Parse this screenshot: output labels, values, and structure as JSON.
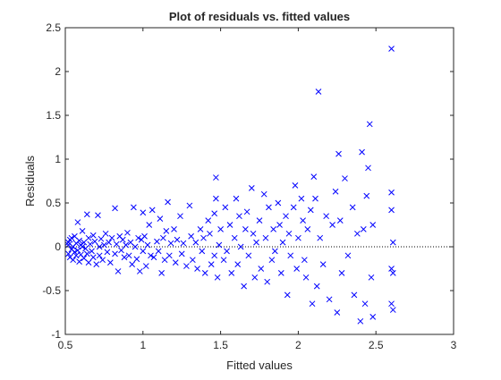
{
  "chart_data": {
    "type": "scatter",
    "title": "Plot of residuals vs. fitted values",
    "xlabel": "Fitted values",
    "ylabel": "Residuals",
    "xlim": [
      0.5,
      3
    ],
    "ylim": [
      -1,
      2.5
    ],
    "xticks": [
      0.5,
      1,
      1.5,
      2,
      2.5,
      3
    ],
    "yticks": [
      -1,
      -0.5,
      0,
      0.5,
      1,
      1.5,
      2,
      2.5
    ],
    "xtick_labels": [
      "0.5",
      "1",
      "1.5",
      "2",
      "2.5",
      "3"
    ],
    "ytick_labels": [
      "-1",
      "-0.5",
      "0",
      "0.5",
      "1",
      "1.5",
      "2",
      "2.5"
    ],
    "grid": false,
    "marker": "x",
    "marker_color": "#0000ff",
    "reference_line": {
      "y": 0,
      "style": "dotted",
      "color": "#000000"
    },
    "series": [
      {
        "points": [
          [
            0.52,
            0.05
          ],
          [
            0.52,
            -0.08
          ],
          [
            0.52,
            0.02
          ],
          [
            0.53,
            -0.12
          ],
          [
            0.53,
            0.08
          ],
          [
            0.54,
            -0.03
          ],
          [
            0.54,
            0.1
          ],
          [
            0.55,
            -0.15
          ],
          [
            0.55,
            0.0
          ],
          [
            0.56,
            0.12
          ],
          [
            0.56,
            -0.06
          ],
          [
            0.57,
            0.04
          ],
          [
            0.57,
            -0.1
          ],
          [
            0.58,
            0.28
          ],
          [
            0.58,
            -0.04
          ],
          [
            0.59,
            0.07
          ],
          [
            0.59,
            -0.17
          ],
          [
            0.6,
            0.02
          ],
          [
            0.6,
            -0.09
          ],
          [
            0.61,
            0.18
          ],
          [
            0.61,
            0.0
          ],
          [
            0.62,
            -0.13
          ],
          [
            0.62,
            0.05
          ],
          [
            0.63,
            -0.02
          ],
          [
            0.64,
            0.37
          ],
          [
            0.64,
            -0.08
          ],
          [
            0.65,
            0.1
          ],
          [
            0.65,
            -0.18
          ],
          [
            0.66,
            0.03
          ],
          [
            0.67,
            -0.05
          ],
          [
            0.68,
            0.13
          ],
          [
            0.68,
            -0.12
          ],
          [
            0.69,
            0.06
          ],
          [
            0.7,
            -0.2
          ],
          [
            0.71,
            0.36
          ],
          [
            0.72,
            0.0
          ],
          [
            0.72,
            -0.1
          ],
          [
            0.73,
            0.09
          ],
          [
            0.74,
            -0.15
          ],
          [
            0.75,
            0.02
          ],
          [
            0.76,
            0.15
          ],
          [
            0.77,
            -0.06
          ],
          [
            0.78,
            0.05
          ],
          [
            0.79,
            -0.18
          ],
          [
            0.8,
            0.1
          ],
          [
            0.82,
            0.44
          ],
          [
            0.82,
            -0.08
          ],
          [
            0.83,
            0.03
          ],
          [
            0.84,
            -0.28
          ],
          [
            0.85,
            0.12
          ],
          [
            0.86,
            -0.04
          ],
          [
            0.87,
            0.08
          ],
          [
            0.88,
            -0.12
          ],
          [
            0.89,
            0.02
          ],
          [
            0.9,
            0.16
          ],
          [
            0.91,
            -0.1
          ],
          [
            0.92,
            0.05
          ],
          [
            0.93,
            -0.2
          ],
          [
            0.94,
            0.45
          ],
          [
            0.95,
            0.0
          ],
          [
            0.96,
            -0.14
          ],
          [
            0.97,
            0.1
          ],
          [
            0.98,
            -0.28
          ],
          [
            0.99,
            0.08
          ],
          [
            1.0,
            0.39
          ],
          [
            1.0,
            -0.05
          ],
          [
            1.01,
            0.12
          ],
          [
            1.02,
            -0.22
          ],
          [
            1.03,
            0.02
          ],
          [
            1.04,
            0.25
          ],
          [
            1.05,
            -0.1
          ],
          [
            1.06,
            0.42
          ],
          [
            1.07,
            -0.12
          ],
          [
            1.09,
            0.06
          ],
          [
            1.1,
            -0.05
          ],
          [
            1.11,
            0.32
          ],
          [
            1.12,
            -0.3
          ],
          [
            1.13,
            0.1
          ],
          [
            1.14,
            -0.15
          ],
          [
            1.15,
            0.18
          ],
          [
            1.16,
            0.51
          ],
          [
            1.17,
            -0.1
          ],
          [
            1.18,
            0.04
          ],
          [
            1.2,
            0.2
          ],
          [
            1.21,
            -0.18
          ],
          [
            1.22,
            0.08
          ],
          [
            1.24,
            0.35
          ],
          [
            1.25,
            -0.08
          ],
          [
            1.26,
            0.04
          ],
          [
            1.28,
            -0.22
          ],
          [
            1.3,
            0.47
          ],
          [
            1.31,
            0.12
          ],
          [
            1.32,
            -0.15
          ],
          [
            1.34,
            0.05
          ],
          [
            1.35,
            -0.25
          ],
          [
            1.37,
            0.2
          ],
          [
            1.38,
            -0.05
          ],
          [
            1.39,
            0.1
          ],
          [
            1.4,
            -0.3
          ],
          [
            1.42,
            0.3
          ],
          [
            1.43,
            0.15
          ],
          [
            1.44,
            -0.2
          ],
          [
            1.46,
            0.38
          ],
          [
            1.46,
            -0.1
          ],
          [
            1.47,
            0.55
          ],
          [
            1.47,
            0.79
          ],
          [
            1.48,
            -0.35
          ],
          [
            1.49,
            0.02
          ],
          [
            1.5,
            0.2
          ],
          [
            1.52,
            -0.15
          ],
          [
            1.53,
            0.45
          ],
          [
            1.54,
            -0.05
          ],
          [
            1.56,
            0.25
          ],
          [
            1.57,
            -0.3
          ],
          [
            1.59,
            0.1
          ],
          [
            1.6,
            0.55
          ],
          [
            1.61,
            -0.2
          ],
          [
            1.62,
            0.35
          ],
          [
            1.63,
            0.0
          ],
          [
            1.65,
            -0.45
          ],
          [
            1.66,
            0.2
          ],
          [
            1.67,
            0.4
          ],
          [
            1.68,
            -0.1
          ],
          [
            1.7,
            0.67
          ],
          [
            1.71,
            0.15
          ],
          [
            1.72,
            -0.35
          ],
          [
            1.73,
            0.05
          ],
          [
            1.75,
            0.3
          ],
          [
            1.76,
            -0.25
          ],
          [
            1.78,
            0.6
          ],
          [
            1.79,
            0.1
          ],
          [
            1.8,
            -0.4
          ],
          [
            1.81,
            0.45
          ],
          [
            1.83,
            -0.15
          ],
          [
            1.84,
            0.2
          ],
          [
            1.85,
            -0.05
          ],
          [
            1.87,
            0.5
          ],
          [
            1.88,
            0.25
          ],
          [
            1.89,
            -0.3
          ],
          [
            1.9,
            0.05
          ],
          [
            1.92,
            0.35
          ],
          [
            1.93,
            -0.55
          ],
          [
            1.94,
            0.15
          ],
          [
            1.95,
            -0.1
          ],
          [
            1.97,
            0.45
          ],
          [
            1.98,
            0.7
          ],
          [
            1.99,
            -0.25
          ],
          [
            2.0,
            0.1
          ],
          [
            2.02,
            0.55
          ],
          [
            2.03,
            0.3
          ],
          [
            2.04,
            -0.15
          ],
          [
            2.05,
            -0.35
          ],
          [
            2.06,
            0.2
          ],
          [
            2.08,
            0.42
          ],
          [
            2.09,
            -0.65
          ],
          [
            2.1,
            0.8
          ],
          [
            2.11,
            0.55
          ],
          [
            2.12,
            -0.45
          ],
          [
            2.13,
            1.77
          ],
          [
            2.14,
            0.1
          ],
          [
            2.16,
            -0.2
          ],
          [
            2.18,
            0.35
          ],
          [
            2.2,
            -0.6
          ],
          [
            2.22,
            0.25
          ],
          [
            2.24,
            0.63
          ],
          [
            2.25,
            -0.75
          ],
          [
            2.26,
            1.06
          ],
          [
            2.27,
            0.3
          ],
          [
            2.28,
            -0.3
          ],
          [
            2.3,
            0.78
          ],
          [
            2.32,
            -0.1
          ],
          [
            2.35,
            0.45
          ],
          [
            2.36,
            -0.55
          ],
          [
            2.38,
            0.15
          ],
          [
            2.4,
            -0.85
          ],
          [
            2.41,
            1.08
          ],
          [
            2.42,
            0.2
          ],
          [
            2.43,
            -0.65
          ],
          [
            2.44,
            0.58
          ],
          [
            2.45,
            0.9
          ],
          [
            2.46,
            1.4
          ],
          [
            2.47,
            -0.35
          ],
          [
            2.48,
            0.25
          ],
          [
            2.48,
            -0.8
          ],
          [
            2.6,
            2.26
          ],
          [
            2.6,
            0.62
          ],
          [
            2.6,
            0.42
          ],
          [
            2.6,
            -0.25
          ],
          [
            2.6,
            -0.65
          ],
          [
            2.61,
            -0.3
          ],
          [
            2.61,
            -0.72
          ],
          [
            2.61,
            0.05
          ]
        ]
      }
    ]
  }
}
